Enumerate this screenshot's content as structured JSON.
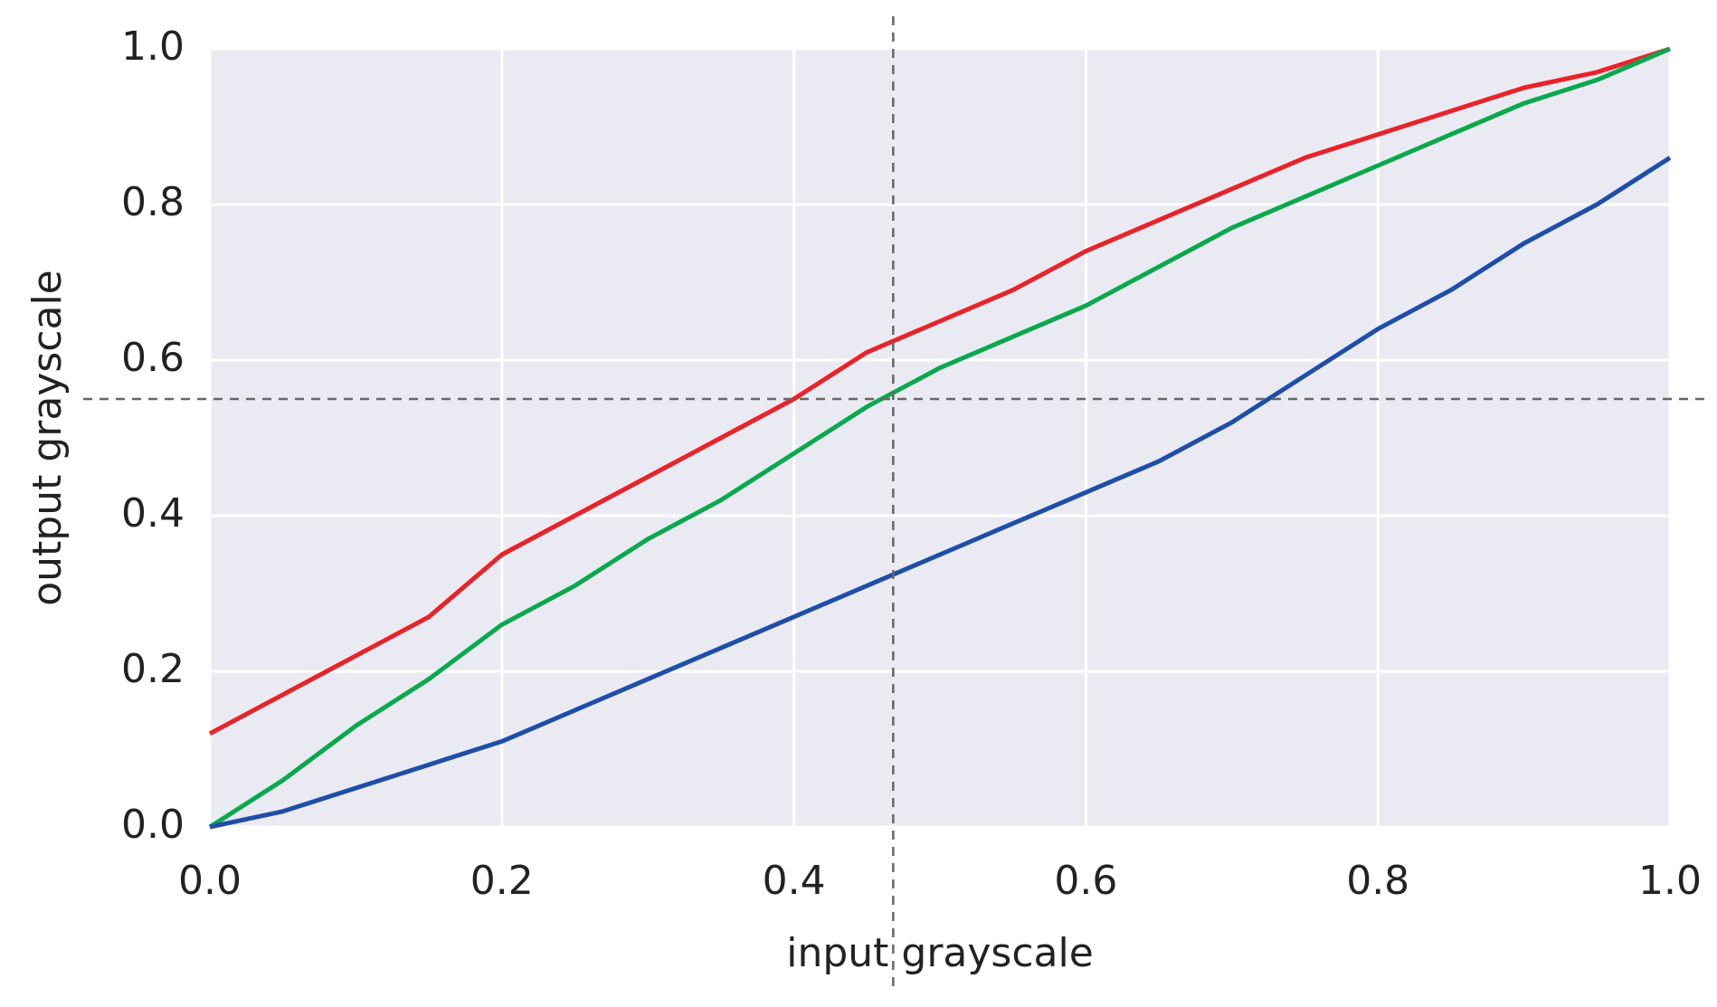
{
  "chart_data": {
    "type": "line",
    "x_label": "input grayscale",
    "y_label": "output grayscale",
    "x": [
      0,
      0.05,
      0.1,
      0.15,
      0.2,
      0.25,
      0.3,
      0.35,
      0.4,
      0.45,
      0.5,
      0.55,
      0.6,
      0.65,
      0.7,
      0.75,
      0.8,
      0.85,
      0.9,
      0.95,
      1.0
    ],
    "series": [
      {
        "color": "#e8232a",
        "values": [
          0.12,
          0.17,
          0.22,
          0.27,
          0.35,
          0.4,
          0.45,
          0.5,
          0.55,
          0.61,
          0.65,
          0.69,
          0.74,
          0.78,
          0.82,
          0.86,
          0.89,
          0.92,
          0.95,
          0.97,
          1.0
        ]
      },
      {
        "color": "#0aa84f",
        "values": [
          0,
          0.06,
          0.13,
          0.19,
          0.26,
          0.31,
          0.37,
          0.42,
          0.48,
          0.54,
          0.59,
          0.63,
          0.67,
          0.72,
          0.77,
          0.81,
          0.85,
          0.89,
          0.93,
          0.96,
          1.0
        ]
      },
      {
        "color": "#1f4ea8",
        "values": [
          0,
          0.02,
          0.05,
          0.08,
          0.11,
          0.15,
          0.19,
          0.23,
          0.27,
          0.31,
          0.35,
          0.39,
          0.43,
          0.47,
          0.52,
          0.58,
          0.64,
          0.69,
          0.75,
          0.8,
          0.86
        ]
      }
    ],
    "xlim": [
      0,
      1
    ],
    "ylim": [
      0,
      1
    ],
    "xticks": [
      {
        "value": 0,
        "label": "0.0"
      },
      0.2,
      0.4,
      0.6,
      0.8,
      {
        "value": 1,
        "label": "1.0"
      }
    ],
    "yticks": [
      {
        "value": 0,
        "label": "0.0"
      },
      0.2,
      0.4,
      0.6,
      0.8,
      {
        "value": 1,
        "label": "1.0"
      }
    ],
    "grid": true,
    "vline": 0.468,
    "hline": 0.55
  }
}
